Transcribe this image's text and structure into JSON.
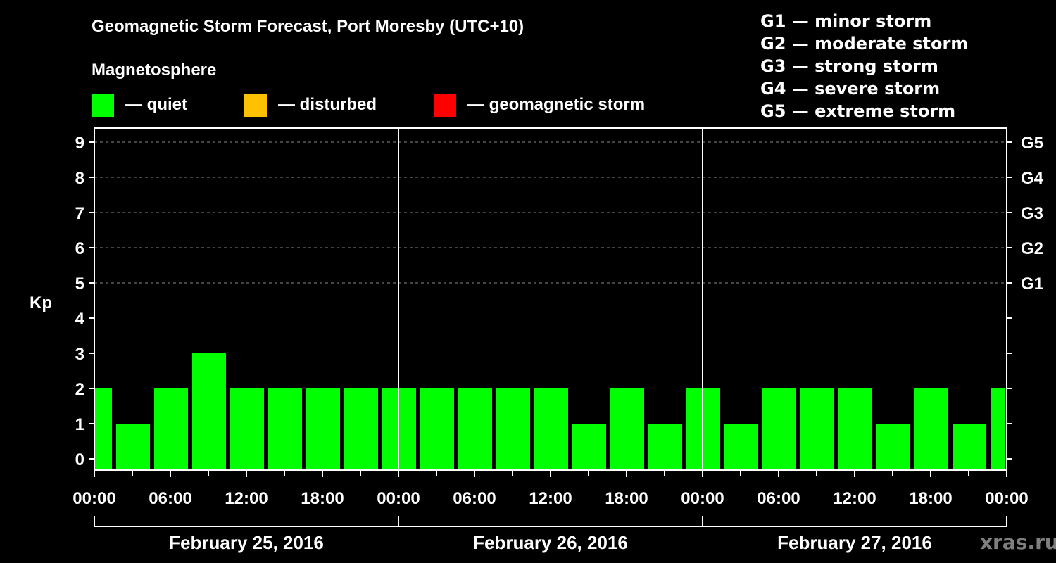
{
  "header": {
    "title": "Geomagnetic Storm Forecast, Port Moresby (UTC+10)",
    "subtitle": "Magnetosphere"
  },
  "legend": [
    {
      "label": "— quiet",
      "color": "#00ff00"
    },
    {
      "label": "— disturbed",
      "color": "#ffc000"
    },
    {
      "label": "— geomagnetic storm",
      "color": "#ff0000"
    }
  ],
  "g_scale": [
    "G1 — minor storm",
    "G2 — moderate storm",
    "G3 — strong storm",
    "G4 — severe storm",
    "G5 — extreme storm"
  ],
  "watermark": "xras.ru",
  "chart_data": {
    "type": "bar",
    "title": "Geomagnetic Storm Forecast, Port Moresby (UTC+10)",
    "xlabel": "",
    "ylabel": "Kp",
    "ylim": [
      0,
      9
    ],
    "yticks": [
      0,
      1,
      2,
      3,
      4,
      5,
      6,
      7,
      8,
      9
    ],
    "right_axis_labels": [
      {
        "kp": 5,
        "label": "G1"
      },
      {
        "kp": 6,
        "label": "G2"
      },
      {
        "kp": 7,
        "label": "G3"
      },
      {
        "kp": 8,
        "label": "G4"
      },
      {
        "kp": 9,
        "label": "G5"
      }
    ],
    "grid": "dashed horizontal at Kp 5-9",
    "x_tick_labels": [
      "00:00",
      "06:00",
      "12:00",
      "18:00",
      "00:00",
      "06:00",
      "12:00",
      "18:00",
      "00:00",
      "06:00",
      "12:00",
      "18:00",
      "00:00"
    ],
    "day_labels": [
      "February 25, 2016",
      "February 26, 2016",
      "February 27, 2016"
    ],
    "interval_hours": 3,
    "categories": [
      "Feb 25 00:00",
      "Feb 25 03:00",
      "Feb 25 06:00",
      "Feb 25 09:00",
      "Feb 25 12:00",
      "Feb 25 15:00",
      "Feb 25 18:00",
      "Feb 25 21:00",
      "Feb 26 00:00",
      "Feb 26 03:00",
      "Feb 26 06:00",
      "Feb 26 09:00",
      "Feb 26 12:00",
      "Feb 26 15:00",
      "Feb 26 18:00",
      "Feb 26 21:00",
      "Feb 27 00:00",
      "Feb 27 03:00",
      "Feb 27 06:00",
      "Feb 27 09:00",
      "Feb 27 12:00",
      "Feb 27 15:00",
      "Feb 27 18:00",
      "Feb 27 21:00",
      "Feb 28 00:00"
    ],
    "values": [
      2,
      1,
      2,
      3,
      2,
      2,
      2,
      2,
      2,
      2,
      2,
      2,
      2,
      1,
      2,
      1,
      2,
      1,
      2,
      2,
      2,
      1,
      2,
      1,
      2
    ],
    "bar_color": "#00ff00"
  }
}
